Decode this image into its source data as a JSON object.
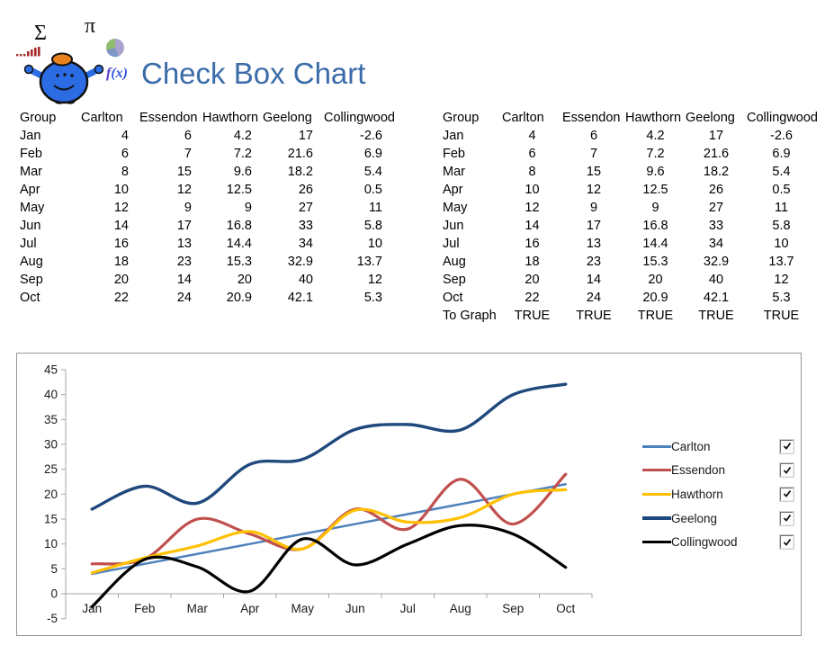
{
  "header": {
    "title": "Check Box Chart",
    "title_color": "#3B6CA9",
    "logo": {
      "sigma_symbol": "Σ",
      "pi_symbol": "π",
      "fx_symbol": "f(x)",
      "character_color": "#2B6BE3",
      "hat_color": "#E8821E",
      "bar_icon_color": "#A52A2A",
      "pie_colors": [
        "#8FBC6D",
        "#A9A3CF",
        "#7C96C6"
      ]
    }
  },
  "tables": {
    "columns": [
      "Group",
      "Carlton",
      "Essendon",
      "Hawthorn",
      "Geelong",
      "Collingwood"
    ],
    "months": [
      "Jan",
      "Feb",
      "Mar",
      "Apr",
      "May",
      "Jun",
      "Jul",
      "Aug",
      "Sep",
      "Oct"
    ],
    "values": [
      [
        4,
        6,
        4.2,
        17,
        -2.6
      ],
      [
        6,
        7,
        7.2,
        21.6,
        6.9
      ],
      [
        8,
        15,
        9.6,
        18.2,
        5.4
      ],
      [
        10,
        12,
        12.5,
        26,
        0.5
      ],
      [
        12,
        9,
        9,
        27,
        11
      ],
      [
        14,
        17,
        16.8,
        33,
        5.8
      ],
      [
        16,
        13,
        14.4,
        34,
        10
      ],
      [
        18,
        23,
        15.3,
        32.9,
        13.7
      ],
      [
        20,
        14,
        20,
        40,
        12
      ],
      [
        22,
        24,
        20.9,
        42.1,
        5.3
      ]
    ],
    "right_extra": {
      "label": "To Graph",
      "values": [
        "TRUE",
        "TRUE",
        "TRUE",
        "TRUE",
        "TRUE"
      ]
    }
  },
  "chart_data": {
    "type": "line",
    "smooth": true,
    "title": "",
    "xlabel": "",
    "ylabel": "",
    "x": [
      "Jan",
      "Feb",
      "Mar",
      "Apr",
      "May",
      "Jun",
      "Jul",
      "Aug",
      "Sep",
      "Oct"
    ],
    "series": [
      {
        "name": "Carlton",
        "color": "#4F81BD",
        "width": 2.5,
        "checked": true,
        "values": [
          4,
          6,
          8,
          10,
          12,
          14,
          16,
          18,
          20,
          22
        ]
      },
      {
        "name": "Essendon",
        "color": "#C0504D",
        "width": 3.2,
        "checked": true,
        "values": [
          6,
          7,
          15,
          12,
          9,
          17,
          13,
          23,
          14,
          24
        ]
      },
      {
        "name": "Hawthorn",
        "color": "#FFC000",
        "width": 3.2,
        "checked": true,
        "values": [
          4.2,
          7.2,
          9.6,
          12.5,
          9,
          16.8,
          14.4,
          15.3,
          20,
          20.9
        ]
      },
      {
        "name": "Geelong",
        "color": "#1F497D",
        "width": 3.4,
        "checked": true,
        "values": [
          17,
          21.6,
          18.2,
          26,
          27,
          33,
          34,
          32.9,
          40,
          42.1
        ]
      },
      {
        "name": "Collingwood",
        "color": "#000000",
        "width": 3.2,
        "checked": true,
        "values": [
          -2.6,
          6.9,
          5.4,
          0.5,
          11,
          5.8,
          10,
          13.7,
          12,
          5.3
        ]
      }
    ],
    "ylim": [
      -5,
      45
    ],
    "yticks": [
      -5,
      0,
      5,
      10,
      15,
      20,
      25,
      30,
      35,
      40,
      45
    ],
    "grid": false,
    "axis_color": "#A6A6A6",
    "legend_position": "right"
  }
}
